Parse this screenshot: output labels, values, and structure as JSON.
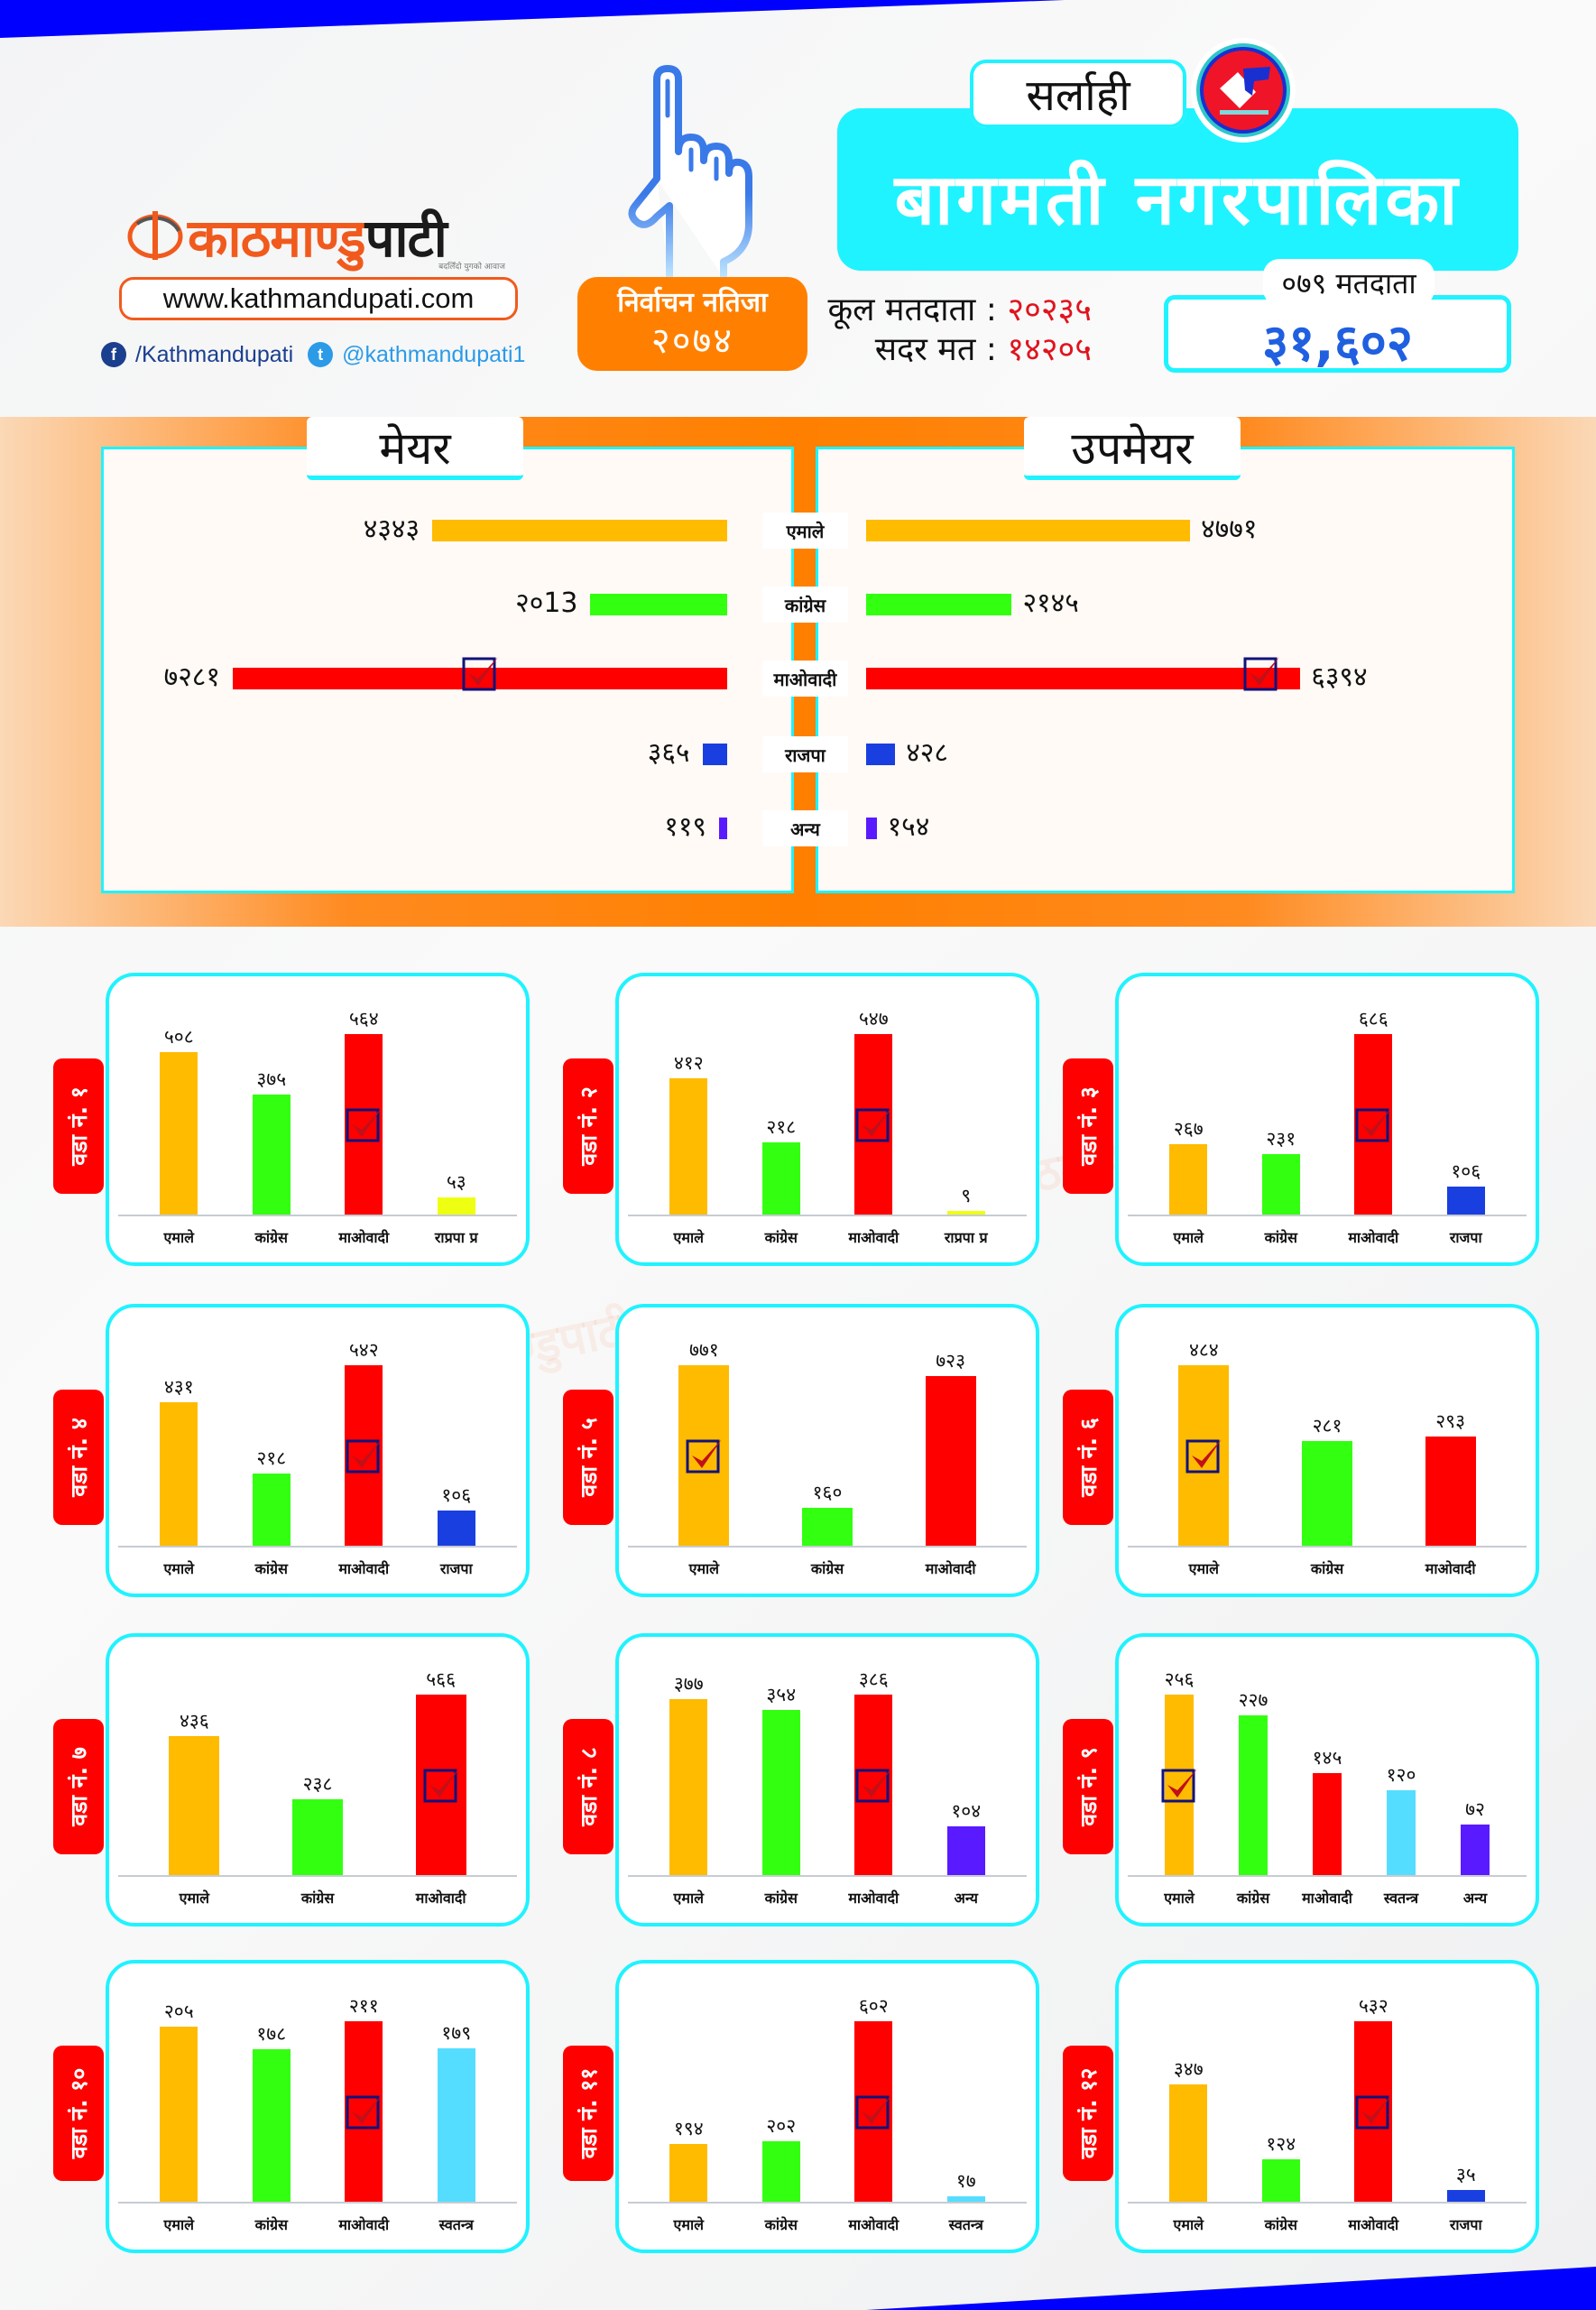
{
  "header": {
    "logo_text_orange": "काठमाण्डु",
    "logo_text_dark": "पाटी",
    "logo_tagline": "बदलिँदो युगको आवाज",
    "website": "www.kathmandupati.com",
    "facebook": "/Kathmandupati",
    "twitter": "@kathmandupati1",
    "result_title": "निर्वाचन नतिजा",
    "result_year": "२०७४",
    "district": "सर्लाही",
    "municipality": "बागमती नगरपालिका",
    "total_voters_label": "कूल मतदाता :",
    "total_voters": "२०२३५",
    "valid_votes_label": "सदर मत :",
    "valid_votes": "१४२०५",
    "voters_079_label": "०७९ मतदाता",
    "voters_079": "३१,६०२"
  },
  "colors": {
    "uml": "#ffbb00",
    "congress": "#33ff11",
    "maoist": "#ff0000",
    "rajpa": "#1a3fe0",
    "other": "#5a1aff",
    "rpp": "#eeff11",
    "independent": "#55ddff",
    "accent_cyan": "#1ff3ff",
    "accent_orange": "#ff8000",
    "strip_blue": "#0000ff"
  },
  "mayor": {
    "title": "मेयर",
    "parties": [
      "एमाले",
      "कांग्रेस",
      "माओवादी",
      "राजपा",
      "अन्य"
    ],
    "labels": [
      "४३४३",
      "२०13",
      "७२८१",
      "३६५",
      "११९"
    ],
    "values": [
      4343,
      2013,
      7281,
      365,
      119
    ],
    "winner_index": 2
  },
  "deputy_mayor": {
    "title": "उपमेयर",
    "labels": [
      "४७७१",
      "२१४५",
      "६३९४",
      "४२८",
      "१५४"
    ],
    "values": [
      4771,
      2145,
      6394,
      428,
      154
    ],
    "winner_index": 2
  },
  "chart_data": [
    {
      "type": "bar",
      "title": "वडा नं. १",
      "categories": [
        "एमाले",
        "कांग्रेस",
        "माओवादी",
        "राप्रपा प्र"
      ],
      "values": [
        508,
        375,
        564,
        53
      ],
      "labels": [
        "५०८",
        "३७५",
        "५६४",
        "५३"
      ],
      "colors": [
        "uml",
        "congress",
        "maoist",
        "rpp"
      ],
      "winner_index": 2
    },
    {
      "type": "bar",
      "title": "वडा नं. २",
      "categories": [
        "एमाले",
        "कांग्रेस",
        "माओवादी",
        "राप्रपा प्र"
      ],
      "values": [
        412,
        218,
        547,
        9
      ],
      "labels": [
        "४१२",
        "२१८",
        "५४७",
        "९"
      ],
      "colors": [
        "uml",
        "congress",
        "maoist",
        "rpp"
      ],
      "winner_index": 2
    },
    {
      "type": "bar",
      "title": "वडा नं. ३",
      "categories": [
        "एमाले",
        "कांग्रेस",
        "माओवादी",
        "राजपा"
      ],
      "values": [
        267,
        231,
        686,
        106
      ],
      "labels": [
        "२६७",
        "२३१",
        "६८६",
        "१०६"
      ],
      "colors": [
        "uml",
        "congress",
        "maoist",
        "rajpa"
      ],
      "winner_index": 2
    },
    {
      "type": "bar",
      "title": "वडा नं. ४",
      "categories": [
        "एमाले",
        "कांग्रेस",
        "माओवादी",
        "राजपा"
      ],
      "values": [
        431,
        218,
        542,
        106
      ],
      "labels": [
        "४३१",
        "२१८",
        "५४२",
        "१०६"
      ],
      "colors": [
        "uml",
        "congress",
        "maoist",
        "rajpa"
      ],
      "winner_index": 2
    },
    {
      "type": "bar",
      "title": "वडा नं. ५",
      "categories": [
        "एमाले",
        "कांग्रेस",
        "माओवादी"
      ],
      "values": [
        771,
        160,
        723
      ],
      "labels": [
        "७७१",
        "१६०",
        "७२३"
      ],
      "colors": [
        "uml",
        "congress",
        "maoist"
      ],
      "winner_index": 0
    },
    {
      "type": "bar",
      "title": "वडा नं. ६",
      "categories": [
        "एमाले",
        "कांग्रेस",
        "माओवादी"
      ],
      "values": [
        484,
        281,
        293
      ],
      "labels": [
        "४८४",
        "२८१",
        "२९३"
      ],
      "colors": [
        "uml",
        "congress",
        "maoist"
      ],
      "winner_index": 0
    },
    {
      "type": "bar",
      "title": "वडा नं. ७",
      "categories": [
        "एमाले",
        "कांग्रेस",
        "माओवादी"
      ],
      "values": [
        436,
        238,
        566
      ],
      "labels": [
        "४३६",
        "२३८",
        "५६६"
      ],
      "colors": [
        "uml",
        "congress",
        "maoist"
      ],
      "winner_index": 2
    },
    {
      "type": "bar",
      "title": "वडा नं. ८",
      "categories": [
        "एमाले",
        "कांग्रेस",
        "माओवादी",
        "अन्य"
      ],
      "values": [
        377,
        354,
        386,
        104
      ],
      "labels": [
        "३७७",
        "३५४",
        "३८६",
        "१०४"
      ],
      "colors": [
        "uml",
        "congress",
        "maoist",
        "other"
      ],
      "winner_index": 2
    },
    {
      "type": "bar",
      "title": "वडा नं. ९",
      "categories": [
        "एमाले",
        "कांग्रेस",
        "माओवादी",
        "स्वतन्त्र",
        "अन्य"
      ],
      "values": [
        256,
        227,
        145,
        120,
        72
      ],
      "labels": [
        "२५६",
        "२२७",
        "१४५",
        "१२०",
        "७२"
      ],
      "colors": [
        "uml",
        "congress",
        "maoist",
        "independent",
        "other"
      ],
      "winner_index": 0
    },
    {
      "type": "bar",
      "title": "वडा नं. १०",
      "categories": [
        "एमाले",
        "कांग्रेस",
        "माओवादी",
        "स्वतन्त्र"
      ],
      "values": [
        205,
        178,
        211,
        179
      ],
      "labels": [
        "२०५",
        "१७८",
        "२११",
        "१७९"
      ],
      "colors": [
        "uml",
        "congress",
        "maoist",
        "independent"
      ],
      "winner_index": 2
    },
    {
      "type": "bar",
      "title": "वडा नं. ११",
      "categories": [
        "एमाले",
        "कांग्रेस",
        "माओवादी",
        "स्वतन्त्र"
      ],
      "values": [
        194,
        202,
        602,
        17
      ],
      "labels": [
        "१९४",
        "२०२",
        "६०२",
        "१७"
      ],
      "colors": [
        "uml",
        "congress",
        "maoist",
        "independent"
      ],
      "winner_index": 2
    },
    {
      "type": "bar",
      "title": "वडा नं. १२",
      "categories": [
        "एमाले",
        "कांग्रेस",
        "माओवादी",
        "राजपा"
      ],
      "values": [
        347,
        124,
        532,
        35
      ],
      "labels": [
        "३४७",
        "१२४",
        "५३२",
        "३५"
      ],
      "colors": [
        "uml",
        "congress",
        "maoist",
        "rajpa"
      ],
      "winner_index": 2
    }
  ]
}
